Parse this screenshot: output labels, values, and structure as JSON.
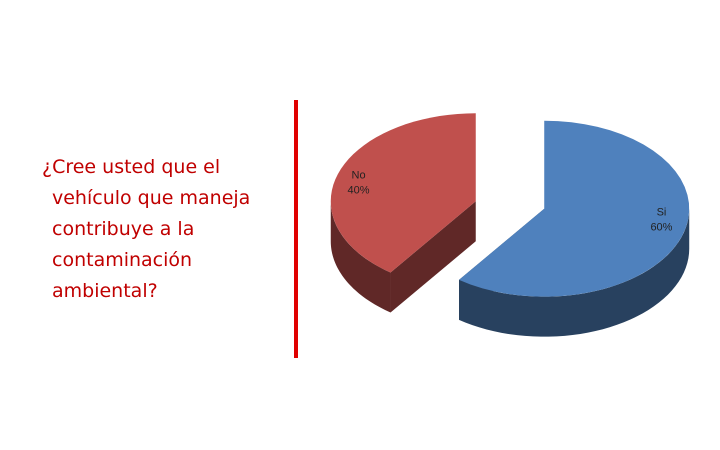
{
  "chart_data": {
    "type": "pie3d",
    "title": "¿Cree usted que el vehículo que maneja contribuye a la contaminación ambiental?",
    "categories": [
      "No",
      "Si"
    ],
    "values": [
      40,
      60
    ],
    "value_labels": [
      "40%",
      "60%"
    ],
    "colors": [
      "#c0504d",
      "#4f81bd"
    ]
  }
}
